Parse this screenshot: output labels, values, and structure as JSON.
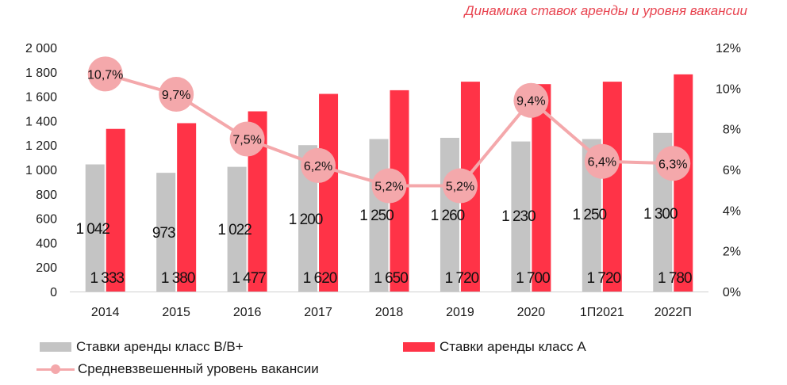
{
  "chart_data": {
    "type": "bar",
    "title": "Динамика ставок аренды и уровня вакансии",
    "categories": [
      "2014",
      "2015",
      "2016",
      "2017",
      "2018",
      "2019",
      "2020",
      "1П2021",
      "2022П"
    ],
    "series": [
      {
        "name": "Ставки аренды класс B/B+",
        "kind": "bar",
        "axis": "left",
        "values": [
          1042,
          973,
          1022,
          1200,
          1250,
          1260,
          1230,
          1250,
          1300
        ],
        "labels": [
          "1 042",
          "973",
          "1 022",
          "1 200",
          "1 250",
          "1 260",
          "1 230",
          "1 250",
          "1 300"
        ],
        "color": "#c4c4c4"
      },
      {
        "name": "Ставки аренды класс А",
        "kind": "bar",
        "axis": "left",
        "values": [
          1333,
          1380,
          1477,
          1620,
          1650,
          1720,
          1700,
          1720,
          1780
        ],
        "labels": [
          "1 333",
          "1 380",
          "1 477",
          "1 620",
          "1 650",
          "1 720",
          "1 700",
          "1 720",
          "1 780"
        ],
        "color": "#ff3347"
      },
      {
        "name": "Средневзвешенный уровень вакансии",
        "kind": "line",
        "axis": "right",
        "values": [
          10.7,
          9.7,
          7.5,
          6.2,
          5.2,
          5.2,
          9.4,
          6.4,
          6.3
        ],
        "labels": [
          "10,7%",
          "9,7%",
          "7,5%",
          "6,2%",
          "5,2%",
          "5,2%",
          "9,4%",
          "6,4%",
          "6,3%"
        ],
        "color": "#f4a8ab"
      }
    ],
    "y_left": {
      "range": [
        0,
        2000
      ],
      "ticks": [
        0,
        200,
        400,
        600,
        800,
        1000,
        1200,
        1400,
        1600,
        1800,
        2000
      ],
      "tick_labels": [
        "0",
        "200",
        "400",
        "600",
        "800",
        "1 000",
        "1 200",
        "1 400",
        "1 600",
        "1 800",
        "2 000"
      ]
    },
    "y_right": {
      "range": [
        0,
        12
      ],
      "ticks": [
        0,
        2,
        4,
        6,
        8,
        10,
        12
      ],
      "tick_labels": [
        "0%",
        "2%",
        "4%",
        "6%",
        "8%",
        "10%",
        "12%"
      ]
    },
    "grid": false,
    "legend_position": "bottom"
  }
}
